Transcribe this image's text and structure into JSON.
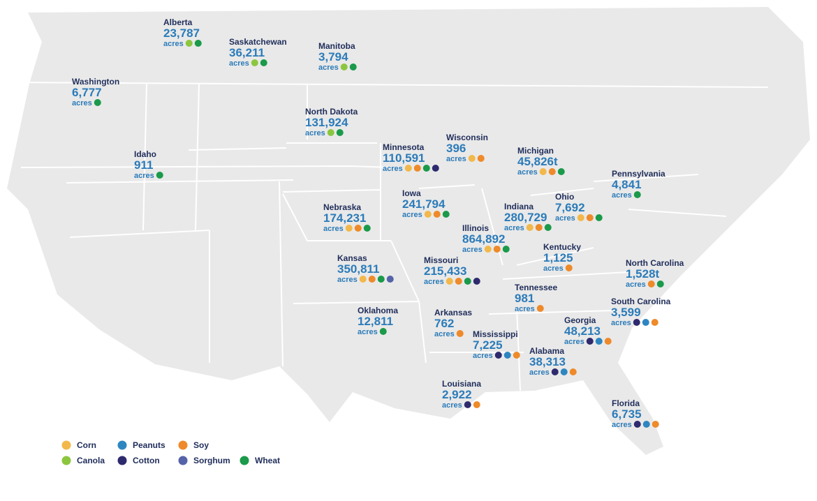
{
  "regions": [
    {
      "name": "Alberta",
      "value": "23,787",
      "unit": "acres",
      "crops": [
        "Canola",
        "Wheat"
      ]
    },
    {
      "name": "Saskatchewan",
      "value": "36,211",
      "unit": "acres",
      "crops": [
        "Canola",
        "Wheat"
      ]
    },
    {
      "name": "Manitoba",
      "value": "3,794",
      "unit": "acres",
      "crops": [
        "Canola",
        "Wheat"
      ]
    },
    {
      "name": "Washington",
      "value": "6,777",
      "unit": "acres",
      "crops": [
        "Wheat"
      ]
    },
    {
      "name": "North Dakota",
      "value": "131,924",
      "unit": "acres",
      "crops": [
        "Canola",
        "Wheat"
      ]
    },
    {
      "name": "Idaho",
      "value": "911",
      "unit": "acres",
      "crops": [
        "Wheat"
      ]
    },
    {
      "name": "Minnesota",
      "value": "110,591",
      "unit": "acres",
      "crops": [
        "Corn",
        "Soy",
        "Wheat",
        "Cotton"
      ]
    },
    {
      "name": "Wisconsin",
      "value": "396",
      "unit": "acres",
      "crops": [
        "Corn",
        "Soy"
      ]
    },
    {
      "name": "Michigan",
      "value": "45,826t",
      "unit": "acres",
      "crops": [
        "Corn",
        "Soy",
        "Wheat"
      ]
    },
    {
      "name": "Pennsylvania",
      "value": "4,841",
      "unit": "acres",
      "crops": [
        "Wheat"
      ]
    },
    {
      "name": "Iowa",
      "value": "241,794",
      "unit": "acres",
      "crops": [
        "Corn",
        "Soy",
        "Wheat"
      ]
    },
    {
      "name": "Nebraska",
      "value": "174,231",
      "unit": "acres",
      "crops": [
        "Corn",
        "Soy",
        "Wheat"
      ]
    },
    {
      "name": "Indiana",
      "value": "280,729",
      "unit": "acres",
      "crops": [
        "Corn",
        "Soy",
        "Wheat"
      ]
    },
    {
      "name": "Ohio",
      "value": "7,692",
      "unit": "acres",
      "crops": [
        "Corn",
        "Soy",
        "Wheat"
      ]
    },
    {
      "name": "Illinois",
      "value": "864,892",
      "unit": "acres",
      "crops": [
        "Corn",
        "Soy",
        "Wheat"
      ]
    },
    {
      "name": "Kentucky",
      "value": "1,125",
      "unit": "acres",
      "crops": [
        "Soy"
      ]
    },
    {
      "name": "Kansas",
      "value": "350,811",
      "unit": "acres",
      "crops": [
        "Corn",
        "Soy",
        "Wheat",
        "Sorghum"
      ]
    },
    {
      "name": "Missouri",
      "value": "215,433",
      "unit": "acres",
      "crops": [
        "Corn",
        "Soy",
        "Wheat",
        "Cotton"
      ]
    },
    {
      "name": "North Carolina",
      "value": "1,528t",
      "unit": "acres",
      "crops": [
        "Soy",
        "Wheat"
      ]
    },
    {
      "name": "Tennessee",
      "value": "981",
      "unit": "acres",
      "crops": [
        "Soy"
      ]
    },
    {
      "name": "South Carolina",
      "value": "3,599",
      "unit": "acres",
      "crops": [
        "Cotton",
        "Peanuts",
        "Soy"
      ]
    },
    {
      "name": "Oklahoma",
      "value": "12,811",
      "unit": "acres",
      "crops": [
        "Wheat"
      ]
    },
    {
      "name": "Arkansas",
      "value": "762",
      "unit": "acres",
      "crops": [
        "Soy"
      ]
    },
    {
      "name": "Georgia",
      "value": "48,213",
      "unit": "acres",
      "crops": [
        "Cotton",
        "Peanuts",
        "Soy"
      ]
    },
    {
      "name": "Mississippi",
      "value": "7,225",
      "unit": "acres",
      "crops": [
        "Cotton",
        "Peanuts",
        "Soy"
      ]
    },
    {
      "name": "Alabama",
      "value": "38,313",
      "unit": "acres",
      "crops": [
        "Cotton",
        "Peanuts",
        "Soy"
      ]
    },
    {
      "name": "Louisiana",
      "value": "2,922",
      "unit": "acres",
      "crops": [
        "Cotton",
        "Soy"
      ]
    },
    {
      "name": "Florida",
      "value": "6,735",
      "unit": "acres",
      "crops": [
        "Cotton",
        "Peanuts",
        "Soy"
      ]
    }
  ],
  "legend": [
    {
      "name": "Corn",
      "color": "#f2b84b"
    },
    {
      "name": "Canola",
      "color": "#8cc63f"
    },
    {
      "name": "Peanuts",
      "color": "#2e86c1"
    },
    {
      "name": "Cotton",
      "color": "#2e2a6e"
    },
    {
      "name": "Soy",
      "color": "#ee8a2a"
    },
    {
      "name": "Sorghum",
      "color": "#5563a8"
    },
    {
      "name": "Wheat",
      "color": "#1a9a4a"
    }
  ]
}
